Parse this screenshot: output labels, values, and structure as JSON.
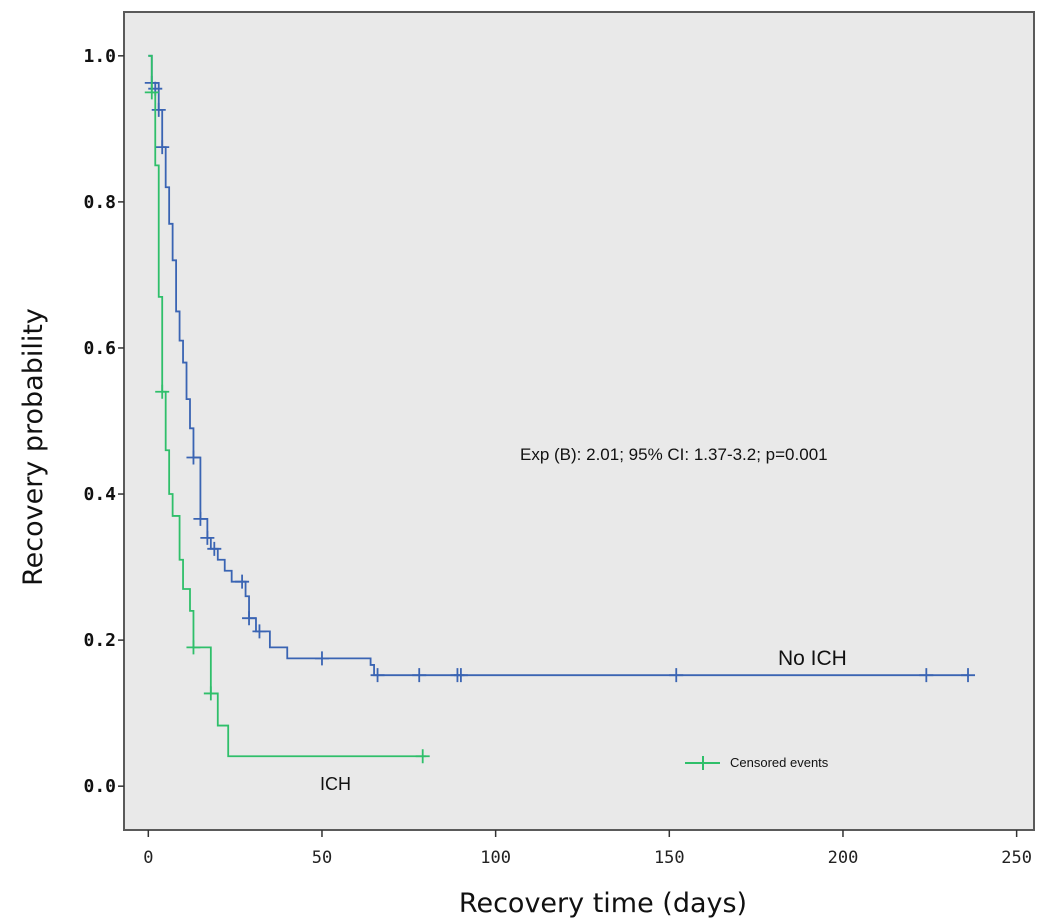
{
  "chart_data": {
    "type": "line",
    "subtype": "kaplan-meier-step",
    "xlabel": "Recovery time (days)",
    "ylabel": "Recovery probability",
    "xlim": [
      -7,
      255
    ],
    "ylim": [
      -0.06,
      1.06
    ],
    "xticks": [
      0,
      50,
      100,
      150,
      200,
      250
    ],
    "xtick_labels": [
      "0",
      "50",
      "100",
      "150",
      "200",
      "250"
    ],
    "yticks": [
      0.0,
      0.2,
      0.4,
      0.6,
      0.8,
      1.0
    ],
    "ytick_labels": [
      "0.0",
      "0.2",
      "0.4",
      "0.6",
      "0.8",
      "1.0"
    ],
    "grid": false,
    "background": "#e9e9e9",
    "annotation": "Exp (B): 2.01; 95% CI: 1.37-3.2; p=0.001",
    "legend": {
      "label": "Censored events",
      "color": "#2fbf6a",
      "position": "bottom-right"
    },
    "series": [
      {
        "name": "No ICH",
        "color": "#3a64b3",
        "steps": [
          [
            0,
            1.0
          ],
          [
            1,
            0.963
          ],
          [
            3,
            0.926
          ],
          [
            4,
            0.875
          ],
          [
            5,
            0.82
          ],
          [
            6,
            0.77
          ],
          [
            7,
            0.72
          ],
          [
            8,
            0.65
          ],
          [
            9,
            0.61
          ],
          [
            10,
            0.58
          ],
          [
            11,
            0.53
          ],
          [
            12,
            0.49
          ],
          [
            13,
            0.45
          ],
          [
            15,
            0.366
          ],
          [
            17,
            0.34
          ],
          [
            18,
            0.325
          ],
          [
            20,
            0.31
          ],
          [
            22,
            0.295
          ],
          [
            24,
            0.28
          ],
          [
            28,
            0.26
          ],
          [
            29,
            0.23
          ],
          [
            31,
            0.212
          ],
          [
            35,
            0.19
          ],
          [
            40,
            0.175
          ],
          [
            64,
            0.166
          ],
          [
            65,
            0.152
          ],
          [
            236,
            0.152
          ]
        ],
        "censored": [
          [
            1,
            0.963
          ],
          [
            2,
            0.955
          ],
          [
            3,
            0.926
          ],
          [
            4,
            0.875
          ],
          [
            13,
            0.45
          ],
          [
            15,
            0.366
          ],
          [
            17,
            0.34
          ],
          [
            19,
            0.325
          ],
          [
            27,
            0.28
          ],
          [
            29,
            0.23
          ],
          [
            32,
            0.212
          ],
          [
            50,
            0.175
          ],
          [
            66,
            0.152
          ],
          [
            78,
            0.152
          ],
          [
            89,
            0.152
          ],
          [
            90,
            0.152
          ],
          [
            152,
            0.152
          ],
          [
            224,
            0.152
          ],
          [
            236,
            0.152
          ]
        ]
      },
      {
        "name": "ICH",
        "color": "#2fbf6a",
        "steps": [
          [
            0,
            1.0
          ],
          [
            1,
            0.95
          ],
          [
            2,
            0.85
          ],
          [
            3,
            0.67
          ],
          [
            4,
            0.54
          ],
          [
            5,
            0.46
          ],
          [
            6,
            0.4
          ],
          [
            7,
            0.37
          ],
          [
            9,
            0.31
          ],
          [
            10,
            0.27
          ],
          [
            12,
            0.24
          ],
          [
            13,
            0.19
          ],
          [
            18,
            0.127
          ],
          [
            20,
            0.083
          ],
          [
            23,
            0.041
          ],
          [
            80,
            0.041
          ]
        ],
        "censored": [
          [
            1,
            0.95
          ],
          [
            4,
            0.54
          ],
          [
            13,
            0.19
          ],
          [
            18,
            0.127
          ],
          [
            79,
            0.041
          ]
        ]
      }
    ]
  }
}
